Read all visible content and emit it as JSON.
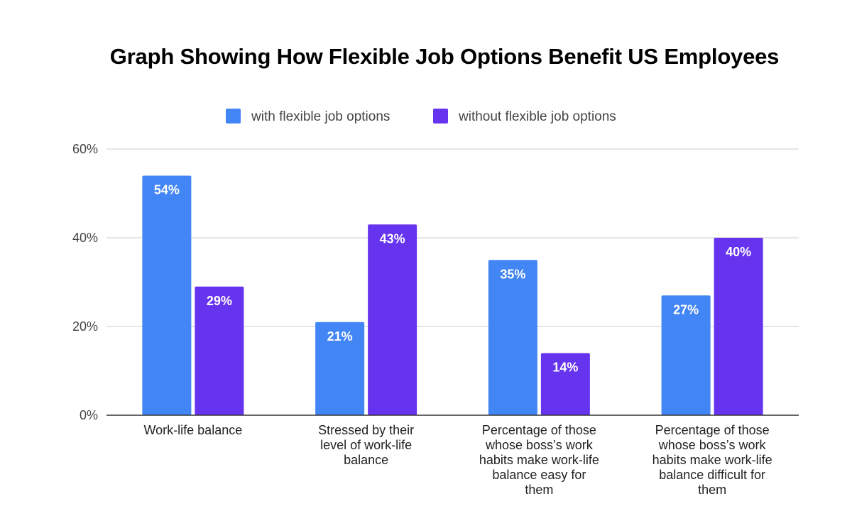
{
  "chart_data": {
    "type": "bar",
    "title": "Graph Showing How Flexible Job Options Benefit US Employees",
    "xlabel": "",
    "ylabel": "",
    "ylim": [
      0,
      60
    ],
    "y_ticks": [
      0,
      20,
      40,
      60
    ],
    "y_tick_labels": [
      "0%",
      "20%",
      "40%",
      "60%"
    ],
    "grid": true,
    "legend_position": "top",
    "categories": [
      [
        "Work-life balance"
      ],
      [
        "Stressed by their",
        "level of work-life",
        "balance"
      ],
      [
        "Percentage of those",
        "whose boss’s work",
        "habits make work-life",
        "balance easy for",
        "them"
      ],
      [
        "Percentage of those",
        "whose boss’s work",
        "habits make work-life",
        "balance difficult for",
        "them"
      ]
    ],
    "series": [
      {
        "name": "with flexible job options",
        "color": "#4285f4",
        "values": [
          54,
          21,
          35,
          27
        ],
        "labels": [
          "54%",
          "21%",
          "35%",
          "27%"
        ]
      },
      {
        "name": "without flexible job options",
        "color": "#6633ee",
        "values": [
          29,
          43,
          14,
          40
        ],
        "labels": [
          "29%",
          "43%",
          "14%",
          "40%"
        ]
      }
    ]
  }
}
